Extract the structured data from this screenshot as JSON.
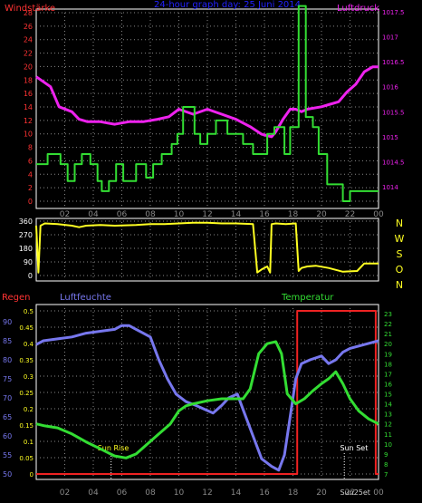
{
  "header": {
    "left_label": "Windstärke",
    "title": "24-hour graph day:  25 Juni 2014",
    "right_label": "Luftdruck"
  },
  "panel2_side_labels": [
    "N",
    "W",
    "S",
    "O",
    "N"
  ],
  "panel3_labels": {
    "regen": "Regen",
    "luftfeuchte": "Luftfeuchte",
    "temperatur": "Temperatur",
    "sun_rise": "Sun Rise",
    "sun_set": "Sun Set",
    "sunset_overlap": "Sun25et"
  },
  "colors": {
    "wind_speed": "#33dd33",
    "pressure": "#ee22ee",
    "wind_dir": "#ffff22",
    "humidity": "#7777ee",
    "temperature": "#33dd33",
    "rain": "#ee2222",
    "title": "#2222ff",
    "left_axis_red": "#ff3333",
    "grid": "#888888"
  },
  "chart_data": [
    {
      "type": "line",
      "title": "24-hour graph day:  25 Juni 2014",
      "xlabel": "",
      "x_ticks": [
        "02",
        "04",
        "06",
        "08",
        "10",
        "12",
        "14",
        "16",
        "18",
        "20",
        "22",
        "00"
      ],
      "y_left": {
        "label": "Windstärke",
        "ticks": [
          "0",
          "2",
          "4",
          "6",
          "8",
          "10",
          "12",
          "14",
          "16",
          "18",
          "20",
          "22",
          "24",
          "26",
          "28"
        ],
        "ylim": [
          0,
          29
        ]
      },
      "y_right": {
        "label": "Luftdruck",
        "ticks": [
          "1014",
          "1014.5",
          "1015",
          "1015.5",
          "1016",
          "1016.5",
          "1017",
          "1017.5"
        ],
        "ylim": [
          1013.75,
          1017.6
        ]
      },
      "grid": true,
      "series": [
        {
          "name": "Windstärke",
          "axis": "left",
          "step": true,
          "points": [
            [
              0,
              5.5
            ],
            [
              0.8,
              7
            ],
            [
              1.7,
              5.5
            ],
            [
              2.2,
              3
            ],
            [
              2.7,
              5.5
            ],
            [
              3.2,
              7
            ],
            [
              3.8,
              5.5
            ],
            [
              4.3,
              3
            ],
            [
              4.6,
              1.5
            ],
            [
              5.1,
              3
            ],
            [
              5.6,
              5.5
            ],
            [
              6.1,
              3
            ],
            [
              7.0,
              5.5
            ],
            [
              7.7,
              3.5
            ],
            [
              8.2,
              5.5
            ],
            [
              8.8,
              7
            ],
            [
              9.5,
              8.5
            ],
            [
              9.9,
              10
            ],
            [
              10.3,
              14
            ],
            [
              11.1,
              10
            ],
            [
              11.5,
              8.5
            ],
            [
              12.0,
              10
            ],
            [
              12.6,
              12
            ],
            [
              13.4,
              10
            ],
            [
              14.5,
              8.5
            ],
            [
              15.2,
              7
            ],
            [
              16.2,
              10
            ],
            [
              16.7,
              11
            ],
            [
              17.4,
              7
            ],
            [
              17.8,
              11
            ],
            [
              18.4,
              29
            ],
            [
              18.9,
              12.5
            ],
            [
              19.4,
              11
            ],
            [
              19.8,
              7
            ],
            [
              20.4,
              2.5
            ],
            [
              21.5,
              0
            ],
            [
              22.0,
              1.5
            ],
            [
              24,
              1.5
            ]
          ]
        },
        {
          "name": "Luftdruck",
          "axis": "right",
          "points": [
            [
              0,
              1016.2
            ],
            [
              0.5,
              1016.1
            ],
            [
              1.0,
              1016
            ],
            [
              1.6,
              1015.6
            ],
            [
              2.5,
              1015.5
            ],
            [
              3.0,
              1015.35
            ],
            [
              3.6,
              1015.3
            ],
            [
              4.5,
              1015.3
            ],
            [
              5.5,
              1015.25
            ],
            [
              6.5,
              1015.3
            ],
            [
              7.5,
              1015.3
            ],
            [
              8.5,
              1015.35
            ],
            [
              9.3,
              1015.4
            ],
            [
              10.0,
              1015.55
            ],
            [
              11.0,
              1015.45
            ],
            [
              12.0,
              1015.55
            ],
            [
              13.0,
              1015.45
            ],
            [
              14.0,
              1015.35
            ],
            [
              15.0,
              1015.2
            ],
            [
              15.8,
              1015.05
            ],
            [
              16.5,
              1015.0
            ],
            [
              16.8,
              1015.1
            ],
            [
              17.3,
              1015.35
            ],
            [
              17.8,
              1015.55
            ],
            [
              18.2,
              1015.55
            ],
            [
              18.6,
              1015.5
            ],
            [
              19.0,
              1015.55
            ],
            [
              20.0,
              1015.6
            ],
            [
              20.6,
              1015.65
            ],
            [
              21.2,
              1015.7
            ],
            [
              21.8,
              1015.9
            ],
            [
              22.4,
              1016.05
            ],
            [
              23.0,
              1016.3
            ],
            [
              23.6,
              1016.4
            ],
            [
              24,
              1016.4
            ]
          ]
        }
      ]
    },
    {
      "type": "line",
      "title": "",
      "x_ticks": [],
      "y_left": {
        "label": "",
        "ticks": [
          "0",
          "90",
          "180",
          "270",
          "360"
        ],
        "ylim": [
          0,
          370
        ]
      },
      "y_right": {
        "label": "",
        "ticks": [
          "N",
          "W",
          "S",
          "O",
          "N"
        ]
      },
      "grid": true,
      "series": [
        {
          "name": "",
          "points": [
            [
              0,
              330
            ],
            [
              0.15,
              20
            ],
            [
              0.3,
              330
            ],
            [
              0.6,
              345
            ],
            [
              1.5,
              340
            ],
            [
              2.5,
              330
            ],
            [
              3.0,
              320
            ],
            [
              3.5,
              330
            ],
            [
              4.5,
              335
            ],
            [
              5.5,
              330
            ],
            [
              7.0,
              335
            ],
            [
              8.0,
              340
            ],
            [
              9.0,
              340
            ],
            [
              10.0,
              345
            ],
            [
              11.0,
              350
            ],
            [
              12.0,
              350
            ],
            [
              13.0,
              345
            ],
            [
              14.0,
              345
            ],
            [
              15.2,
              340
            ],
            [
              15.5,
              20
            ],
            [
              15.8,
              40
            ],
            [
              16.2,
              60
            ],
            [
              16.4,
              20
            ],
            [
              16.5,
              340
            ],
            [
              16.8,
              345
            ],
            [
              17.5,
              340
            ],
            [
              18.2,
              345
            ],
            [
              18.4,
              30
            ],
            [
              18.6,
              50
            ],
            [
              19.0,
              60
            ],
            [
              19.6,
              65
            ],
            [
              20.5,
              50
            ],
            [
              21.5,
              25
            ],
            [
              22.5,
              30
            ],
            [
              23.0,
              80
            ],
            [
              24,
              80
            ]
          ]
        }
      ]
    },
    {
      "type": "line",
      "title": "",
      "x_ticks": [
        "02",
        "04",
        "06",
        "08",
        "10",
        "12",
        "14",
        "16",
        "18",
        "20",
        "22",
        "00"
      ],
      "y_left_regen": {
        "label": "Regen",
        "ticks": [
          "0",
          "0.05",
          "0.1",
          "0.15",
          "0.2",
          "0.25",
          "0.3",
          "0.35",
          "0.4",
          "0.45",
          "0.5"
        ],
        "ylim": [
          0,
          0.52
        ]
      },
      "y_left_luftfeuchte": {
        "label": "Luftfeuchte",
        "ticks": [
          "50",
          "55",
          "60",
          "65",
          "70",
          "75",
          "80",
          "85",
          "90"
        ],
        "ylim": [
          50,
          92
        ]
      },
      "y_right": {
        "label": "Temperatur",
        "ticks": [
          "7",
          "8",
          "9",
          "10",
          "11",
          "12",
          "13",
          "14",
          "15",
          "16",
          "17",
          "18",
          "19",
          "20",
          "21",
          "22",
          "23"
        ],
        "ylim": [
          7,
          23.3
        ]
      },
      "grid": true,
      "annotations": [
        "Sun Rise",
        "Sun Set"
      ],
      "series": [
        {
          "name": "Luftfeuchte",
          "axis": "left",
          "points": [
            [
              0,
              84
            ],
            [
              0.5,
              85
            ],
            [
              1.5,
              85.5
            ],
            [
              2.5,
              86
            ],
            [
              3.5,
              87
            ],
            [
              4.5,
              87.5
            ],
            [
              5.5,
              88
            ],
            [
              6.0,
              89
            ],
            [
              6.5,
              89
            ],
            [
              7.0,
              88
            ],
            [
              7.5,
              87
            ],
            [
              8.0,
              86
            ],
            [
              8.6,
              80
            ],
            [
              9.2,
              75
            ],
            [
              9.8,
              71
            ],
            [
              10.5,
              69
            ],
            [
              11.2,
              68
            ],
            [
              11.8,
              67
            ],
            [
              12.4,
              66
            ],
            [
              13.0,
              68
            ],
            [
              13.5,
              70
            ],
            [
              14.1,
              71
            ],
            [
              14.6,
              66
            ],
            [
              15.2,
              60
            ],
            [
              15.8,
              54
            ],
            [
              16.5,
              52
            ],
            [
              17.0,
              51
            ],
            [
              17.4,
              55
            ],
            [
              17.8,
              65
            ],
            [
              18.2,
              75
            ],
            [
              18.6,
              79
            ],
            [
              19.2,
              80
            ],
            [
              20.0,
              81
            ],
            [
              20.5,
              79
            ],
            [
              21.0,
              80
            ],
            [
              21.5,
              82
            ],
            [
              22.0,
              83
            ],
            [
              23.0,
              84
            ],
            [
              24,
              85
            ]
          ]
        },
        {
          "name": "Temperatur",
          "axis": "right",
          "points": [
            [
              0,
              12
            ],
            [
              0.6,
              11.8
            ],
            [
              1.5,
              11.6
            ],
            [
              2.5,
              11
            ],
            [
              3.5,
              10.2
            ],
            [
              4.5,
              9.5
            ],
            [
              5.5,
              8.8
            ],
            [
              6.3,
              8.6
            ],
            [
              7.0,
              9
            ],
            [
              7.8,
              10
            ],
            [
              8.6,
              11
            ],
            [
              9.4,
              12
            ],
            [
              10.0,
              13.3
            ],
            [
              10.5,
              13.8
            ],
            [
              11.0,
              14
            ],
            [
              12.0,
              14.3
            ],
            [
              13.0,
              14.5
            ],
            [
              14.0,
              14.5
            ],
            [
              14.5,
              14.5
            ],
            [
              15.0,
              15.5
            ],
            [
              15.6,
              19
            ],
            [
              16.2,
              20
            ],
            [
              16.8,
              20.2
            ],
            [
              17.2,
              19
            ],
            [
              17.6,
              15
            ],
            [
              18.2,
              14
            ],
            [
              18.8,
              14.5
            ],
            [
              19.4,
              15.3
            ],
            [
              20.0,
              16
            ],
            [
              20.5,
              16.5
            ],
            [
              21.0,
              17.2
            ],
            [
              21.5,
              16
            ],
            [
              22.0,
              14.5
            ],
            [
              22.6,
              13.3
            ],
            [
              23.3,
              12.5
            ],
            [
              24,
              12
            ]
          ]
        },
        {
          "name": "Regen",
          "axis": "left",
          "step": true,
          "points": [
            [
              0,
              0
            ],
            [
              18.3,
              0
            ],
            [
              18.3,
              0.5
            ],
            [
              23.8,
              0.5
            ],
            [
              23.8,
              0
            ],
            [
              24,
              0
            ]
          ]
        }
      ]
    }
  ]
}
